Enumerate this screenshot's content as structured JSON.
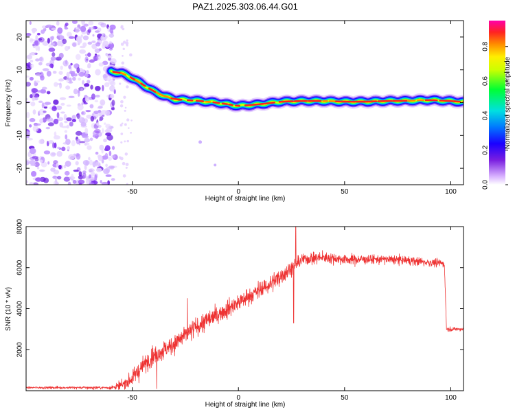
{
  "title": "PAZ1.2025.303.06.44.G01",
  "chart_data": [
    {
      "type": "heatmap",
      "name": "spectrogram",
      "xlabel": "Height of straight line (km)",
      "ylabel": "Frequency (Hz)",
      "xlim": [
        -100,
        106
      ],
      "ylim": [
        -25,
        25
      ],
      "xticks": [
        -50,
        0,
        50,
        100
      ],
      "yticks": [
        -20,
        -10,
        0,
        10,
        20
      ],
      "colorbar": {
        "label": "Normalized spectral amplitude",
        "range": [
          0.0,
          0.95
        ],
        "ticks": [
          0.0,
          0.2,
          0.4,
          0.6,
          0.8
        ]
      },
      "noise_region_x": [
        -100,
        -60
      ],
      "ridge": {
        "x": [
          -60,
          -55,
          -50,
          -45,
          -40,
          -35,
          -30,
          -25,
          -20,
          -10,
          0,
          10,
          20,
          30,
          40,
          50,
          60,
          70,
          80,
          90,
          100,
          106
        ],
        "y": [
          9.5,
          9.0,
          7.5,
          5.5,
          3.5,
          2.0,
          1.0,
          0.8,
          0.6,
          0.0,
          -1.0,
          -0.5,
          0.3,
          0.5,
          0.5,
          0.3,
          0.3,
          0.5,
          0.6,
          0.8,
          0.5,
          0.2
        ]
      }
    },
    {
      "type": "line",
      "name": "snr",
      "xlabel": "Height of straight line (km)",
      "ylabel": "SNR (10 * v/v)",
      "xlim": [
        -100,
        106
      ],
      "ylim": [
        0,
        8000
      ],
      "xticks": [
        -50,
        0,
        50,
        100
      ],
      "yticks": [
        2000,
        4000,
        6000,
        8000
      ],
      "color": "#ee3333",
      "trend": {
        "x": [
          -100,
          -80,
          -60,
          -55,
          -50,
          -45,
          -40,
          -35,
          -30,
          -25,
          -20,
          -15,
          -10,
          -5,
          0,
          5,
          10,
          15,
          20,
          25,
          30,
          40,
          50,
          60,
          70,
          80,
          90,
          97,
          98,
          100,
          106
        ],
        "y": [
          150,
          150,
          150,
          250,
          600,
          1200,
          1700,
          2000,
          2300,
          2700,
          3100,
          3400,
          3700,
          4000,
          4300,
          4600,
          4900,
          5200,
          5600,
          6000,
          6400,
          6500,
          6400,
          6400,
          6400,
          6350,
          6250,
          6200,
          3000,
          3000,
          3000
        ]
      },
      "noise_amplitude": {
        "x": [
          -100,
          -60,
          -50,
          -40,
          -20,
          0,
          20,
          30,
          60,
          97,
          98,
          106
        ],
        "y": [
          80,
          120,
          600,
          700,
          700,
          650,
          650,
          450,
          350,
          300,
          150,
          150
        ]
      },
      "spikes": [
        {
          "x": -40.5,
          "y": 2200
        },
        {
          "x": -38.5,
          "y": 100
        },
        {
          "x": -24,
          "y": 4500
        },
        {
          "x": 26,
          "y": 3300
        },
        {
          "x": 27,
          "y": 8000
        }
      ]
    }
  ]
}
